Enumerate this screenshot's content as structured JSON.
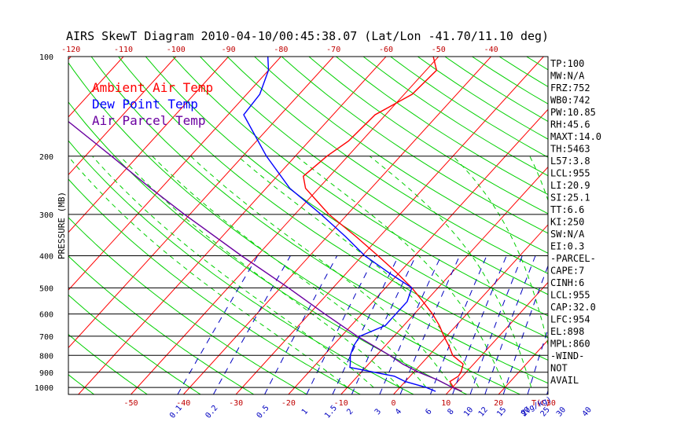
{
  "title": "AIRS SkewT Diagram 2010-04-10/00:45:38.07 (Lat/Lon -41.70/11.10 deg)",
  "colors": {
    "ambient": "#ff0000",
    "dewpoint": "#0000ff",
    "parcel": "#6a00a0",
    "isotherm": "#ff0000",
    "dry_adiabat": "#00d000",
    "moist_adiabat": "#00d000",
    "mixing_ratio": "#0000c0",
    "isobar": "#000000"
  },
  "chart_data": {
    "type": "line",
    "title": "AIRS SkewT Diagram 2010-04-10/00:45:38.07 (Lat/Lon -41.70/11.10 deg)",
    "ylabel": "PRESSURE (MB)",
    "xlabel": "T(C)",
    "y_scale": "log",
    "ylim": [
      1050,
      100
    ],
    "pressure_ticks": [
      100,
      200,
      300,
      400,
      500,
      600,
      700,
      800,
      900,
      1000
    ],
    "top_temp_ticks": [
      -120,
      -110,
      -100,
      -90,
      -80,
      -70,
      -60,
      -50,
      -40
    ],
    "bottom_temp_ticks": [
      -50,
      -40,
      -30,
      -20,
      -10,
      0,
      10,
      20,
      30
    ],
    "bottom_temp_label": "T(C)",
    "mixing_ratio_ticks": [
      "0.1",
      "0.2",
      "0.5",
      "1",
      "1.5",
      "2",
      "3",
      "4",
      "6",
      "8",
      "10",
      "12",
      "15",
      "20",
      "25",
      "30",
      "40"
    ],
    "mixing_ratio_label": "g(g/kg)",
    "legend": [
      {
        "name": "Ambient Air Temp",
        "color": "#ff0000"
      },
      {
        "name": "Dew Point Temp",
        "color": "#0000ff"
      },
      {
        "name": "Air Parcel Temp",
        "color": "#6a00a0"
      }
    ],
    "series": [
      {
        "name": "Ambient Air Temp",
        "points": [
          {
            "p": 1028,
            "t": 12.5
          },
          {
            "p": 1000,
            "t": 10.2
          },
          {
            "p": 960,
            "t": 8.5
          },
          {
            "p": 925,
            "t": 9.2
          },
          {
            "p": 900,
            "t": 9.0
          },
          {
            "p": 850,
            "t": 8.0
          },
          {
            "p": 800,
            "t": 4.5
          },
          {
            "p": 750,
            "t": 2.2
          },
          {
            "p": 700,
            "t": -0.5
          },
          {
            "p": 650,
            "t": -3.2
          },
          {
            "p": 600,
            "t": -6.5
          },
          {
            "p": 550,
            "t": -10.5
          },
          {
            "p": 500,
            "t": -15.0
          },
          {
            "p": 450,
            "t": -20.5
          },
          {
            "p": 400,
            "t": -27.0
          },
          {
            "p": 350,
            "t": -34.5
          },
          {
            "p": 300,
            "t": -43.5
          },
          {
            "p": 250,
            "t": -52.5
          },
          {
            "p": 230,
            "t": -55.0
          },
          {
            "p": 200,
            "t": -54.0
          },
          {
            "p": 180,
            "t": -52.5
          },
          {
            "p": 150,
            "t": -52.0
          },
          {
            "p": 130,
            "t": -48.5
          },
          {
            "p": 110,
            "t": -48.0
          },
          {
            "p": 100,
            "t": -51.0
          }
        ]
      },
      {
        "name": "Dew Point Temp",
        "points": [
          {
            "p": 1028,
            "t": 7.5
          },
          {
            "p": 1000,
            "t": 5.0
          },
          {
            "p": 960,
            "t": 0.0
          },
          {
            "p": 925,
            "t": -3.0
          },
          {
            "p": 900,
            "t": -7.5
          },
          {
            "p": 870,
            "t": -13.0
          },
          {
            "p": 850,
            "t": -13.5
          },
          {
            "p": 800,
            "t": -15.0
          },
          {
            "p": 750,
            "t": -16.0
          },
          {
            "p": 700,
            "t": -16.5
          },
          {
            "p": 650,
            "t": -13.5
          },
          {
            "p": 600,
            "t": -13.5
          },
          {
            "p": 550,
            "t": -13.5
          },
          {
            "p": 500,
            "t": -15.0
          },
          {
            "p": 450,
            "t": -22.0
          },
          {
            "p": 400,
            "t": -29.5
          },
          {
            "p": 350,
            "t": -36.5
          },
          {
            "p": 300,
            "t": -45.0
          },
          {
            "p": 250,
            "t": -55.5
          },
          {
            "p": 200,
            "t": -65.5
          },
          {
            "p": 170,
            "t": -72.0
          },
          {
            "p": 150,
            "t": -77.0
          },
          {
            "p": 130,
            "t": -77.5
          },
          {
            "p": 110,
            "t": -80.0
          },
          {
            "p": 100,
            "t": -82.5
          }
        ]
      },
      {
        "name": "Air Parcel Temp",
        "points": [
          {
            "p": 1028,
            "t": 12.5
          },
          {
            "p": 1000,
            "t": 10.0
          },
          {
            "p": 950,
            "t": 6.0
          },
          {
            "p": 900,
            "t": 1.0
          },
          {
            "p": 850,
            "t": -3.5
          },
          {
            "p": 800,
            "t": -7.5
          },
          {
            "p": 700,
            "t": -17.0
          },
          {
            "p": 600,
            "t": -27.0
          },
          {
            "p": 500,
            "t": -38.5
          },
          {
            "p": 400,
            "t": -53.0
          },
          {
            "p": 300,
            "t": -71.0
          },
          {
            "p": 250,
            "t": -82.0
          },
          {
            "p": 200,
            "t": -95.0
          },
          {
            "p": 150,
            "t": -112.0
          },
          {
            "p": 100,
            "t": -138.0
          }
        ]
      }
    ],
    "indices": [
      "TP:100",
      "MW:N/A",
      "FRZ:752",
      "WB0:742",
      "PW:10.85",
      "RH:45.6",
      "MAXT:14.0",
      "TH:5463",
      "L57:3.8",
      "LCL:955",
      "LI:20.9",
      "SI:25.1",
      "TT:6.6",
      "KI:250",
      "SW:N/A",
      "EI:0.3",
      "-PARCEL-",
      "CAPE:7",
      "CINH:6",
      "LCL:955",
      "CAP:32.0",
      "LFC:954",
      "EL:898",
      "MPL:860",
      "-WIND-",
      "NOT",
      "AVAIL"
    ]
  }
}
